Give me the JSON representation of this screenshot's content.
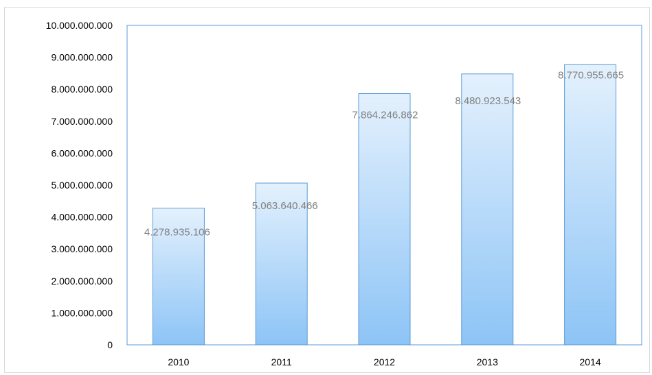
{
  "chart_data": {
    "type": "bar",
    "title": "",
    "xlabel": "",
    "ylabel": "",
    "categories": [
      "2010",
      "2011",
      "2012",
      "2013",
      "2014"
    ],
    "values": [
      4278935106,
      5063640466,
      7864246862,
      8480923543,
      8770955665
    ],
    "data_labels": [
      "4.278.935.106",
      "5.063.640.466",
      "7.864.246.862",
      "8.480.923.543",
      "8.770.955.665"
    ],
    "ylim": [
      0,
      10000000000
    ],
    "yticks": [
      0,
      1000000000,
      2000000000,
      3000000000,
      4000000000,
      5000000000,
      6000000000,
      7000000000,
      8000000000,
      9000000000,
      10000000000
    ],
    "ytick_labels": [
      "0",
      "1.000.000.000",
      "2.000.000.000",
      "3.000.000.000",
      "4.000.000.000",
      "5.000.000.000",
      "6.000.000.000",
      "7.000.000.000",
      "8.000.000.000",
      "9.000.000.000",
      "10.000.000.000"
    ],
    "grid": false,
    "legend": "none",
    "colors": {
      "bar_top": "#e4f1fd",
      "bar_bottom": "#8dc4f6",
      "bar_edge": "#5b9bd5",
      "plot_border": "#5b9bd5",
      "data_label": "#7f7f7f",
      "tick_label": "#000000"
    }
  }
}
